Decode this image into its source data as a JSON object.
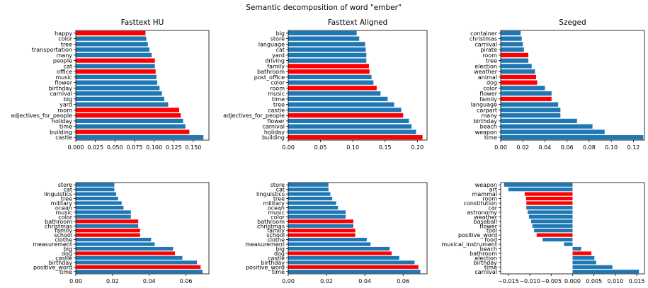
{
  "suptitle": "Semantic decomposition of word \"ember\"",
  "colors": {
    "positive": "#1f77b4",
    "negative": "#ff0000"
  },
  "chart_data": [
    {
      "type": "bar",
      "orientation": "horizontal",
      "title": "Fasttext HU",
      "xlim": [
        0,
        0.17
      ],
      "xticks": [
        "0.000",
        "0.025",
        "0.050",
        "0.075",
        "0.100",
        "0.125",
        "0.150"
      ],
      "categories": [
        "castle",
        "building",
        "time",
        "holiday",
        "adjectives_for_people",
        "room",
        "yard",
        "big",
        "carnival",
        "birthday",
        "flower",
        "music",
        "office",
        "cat",
        "people",
        "many",
        "transportation",
        "tree",
        "color",
        "happy"
      ],
      "values": [
        0.163,
        0.145,
        0.14,
        0.137,
        0.134,
        0.132,
        0.118,
        0.113,
        0.11,
        0.107,
        0.104,
        0.103,
        0.102,
        0.101,
        0.101,
        0.097,
        0.094,
        0.092,
        0.09,
        0.089
      ],
      "highlight": [
        false,
        true,
        false,
        false,
        true,
        true,
        false,
        false,
        false,
        false,
        false,
        false,
        true,
        false,
        true,
        false,
        false,
        false,
        false,
        true
      ]
    },
    {
      "type": "bar",
      "orientation": "horizontal",
      "title": "Fasttext Aligned",
      "xlim": [
        0,
        0.215
      ],
      "xticks": [
        "0.00",
        "0.05",
        "0.10",
        "0.15",
        "0.20"
      ],
      "categories": [
        "building",
        "holiday",
        "carnival",
        "flower",
        "adjectives_for_people",
        "castle",
        "tree",
        "time",
        "music",
        "room",
        "color",
        "post_office",
        "bathroom",
        "family",
        "driving",
        "yard",
        "cat",
        "language",
        "store",
        "big"
      ],
      "values": [
        0.208,
        0.198,
        0.191,
        0.187,
        0.178,
        0.175,
        0.164,
        0.154,
        0.143,
        0.137,
        0.132,
        0.129,
        0.126,
        0.125,
        0.121,
        0.121,
        0.12,
        0.119,
        0.11,
        0.106
      ],
      "highlight": [
        true,
        false,
        false,
        false,
        true,
        false,
        false,
        false,
        false,
        true,
        false,
        false,
        true,
        true,
        false,
        false,
        false,
        false,
        false,
        false
      ]
    },
    {
      "type": "bar",
      "orientation": "horizontal",
      "title": "Szeged",
      "xlim": [
        0,
        0.13
      ],
      "xticks": [
        "0.00",
        "0.02",
        "0.04",
        "0.06",
        "0.08",
        "0.10",
        "0.12"
      ],
      "categories": [
        "time",
        "weapon",
        "beach",
        "birthday",
        "many",
        "carpart",
        "language",
        "family",
        "flower",
        "color",
        "dog",
        "animal",
        "weather",
        "election",
        "tree",
        "room",
        "pirate",
        "carnival",
        "christmas",
        "container"
      ],
      "values": [
        0.129,
        0.094,
        0.083,
        0.069,
        0.054,
        0.054,
        0.052,
        0.046,
        0.046,
        0.04,
        0.033,
        0.032,
        0.031,
        0.028,
        0.025,
        0.025,
        0.021,
        0.02,
        0.019,
        0.018
      ],
      "highlight": [
        false,
        false,
        false,
        false,
        false,
        false,
        false,
        true,
        false,
        false,
        true,
        true,
        false,
        false,
        false,
        true,
        false,
        false,
        false,
        false
      ]
    },
    {
      "type": "bar",
      "orientation": "horizontal",
      "title": "",
      "xlim": [
        0,
        0.0725
      ],
      "xticks": [
        "0.00",
        "0.02",
        "0.04",
        "0.06"
      ],
      "categories": [
        "time",
        "positive_word",
        "birthday",
        "castle",
        "dog",
        "big",
        "measurement",
        "clothe",
        "school",
        "family",
        "christmas",
        "bathroom",
        "color",
        "music",
        "ocean",
        "military",
        "tree",
        "linguistics",
        "cat",
        "store"
      ],
      "values": [
        0.069,
        0.068,
        0.066,
        0.058,
        0.054,
        0.053,
        0.043,
        0.041,
        0.035,
        0.035,
        0.034,
        0.034,
        0.03,
        0.03,
        0.026,
        0.025,
        0.023,
        0.022,
        0.021,
        0.021
      ],
      "highlight": [
        false,
        true,
        false,
        false,
        true,
        false,
        false,
        false,
        true,
        true,
        false,
        true,
        false,
        false,
        false,
        false,
        false,
        false,
        false,
        false
      ]
    },
    {
      "type": "bar",
      "orientation": "horizontal",
      "title": "",
      "xlim": [
        0,
        0.0725
      ],
      "xticks": [
        "0.00",
        "0.02",
        "0.04",
        "0.06"
      ],
      "categories": [
        "time",
        "positive_word",
        "birthday",
        "castle",
        "dog",
        "big",
        "measurement",
        "clothe",
        "school",
        "family",
        "christmas",
        "bathroom",
        "color",
        "music",
        "ocean",
        "military",
        "tree",
        "linguistics",
        "cat",
        "store"
      ],
      "values": [
        0.069,
        0.068,
        0.066,
        0.058,
        0.054,
        0.053,
        0.043,
        0.041,
        0.035,
        0.035,
        0.034,
        0.034,
        0.03,
        0.03,
        0.026,
        0.025,
        0.023,
        0.022,
        0.021,
        0.021
      ],
      "highlight": [
        false,
        true,
        false,
        false,
        true,
        false,
        false,
        false,
        true,
        true,
        false,
        true,
        false,
        false,
        false,
        false,
        false,
        false,
        false,
        false
      ]
    },
    {
      "type": "bar",
      "orientation": "horizontal",
      "title": "",
      "xlim": [
        -0.0168,
        0.0168
      ],
      "xticks": [
        "−0.015",
        "−0.010",
        "−0.005",
        "0.000",
        "0.005",
        "0.010",
        "0.015"
      ],
      "xtick_values": [
        -0.015,
        -0.01,
        -0.005,
        0.0,
        0.005,
        0.01,
        0.015
      ],
      "categories": [
        "carnival",
        "time",
        "birthday",
        "election",
        "bathroom",
        "beach",
        "musical_instrument",
        "food",
        "positive_word",
        "tool",
        "flower",
        "baseball",
        "weather",
        "astronomy",
        "car",
        "constitution",
        "room",
        "mammal",
        "art",
        "weapon"
      ],
      "values": [
        0.0155,
        0.0093,
        0.0055,
        0.0051,
        0.0044,
        0.002,
        -0.002,
        -0.007,
        -0.0084,
        -0.009,
        -0.0094,
        -0.0097,
        -0.0102,
        -0.0105,
        -0.0108,
        -0.0108,
        -0.0109,
        -0.0112,
        -0.015,
        -0.016
      ],
      "highlight": [
        false,
        false,
        false,
        false,
        true,
        false,
        false,
        false,
        true,
        false,
        false,
        false,
        false,
        false,
        false,
        true,
        true,
        true,
        false,
        false
      ]
    }
  ]
}
